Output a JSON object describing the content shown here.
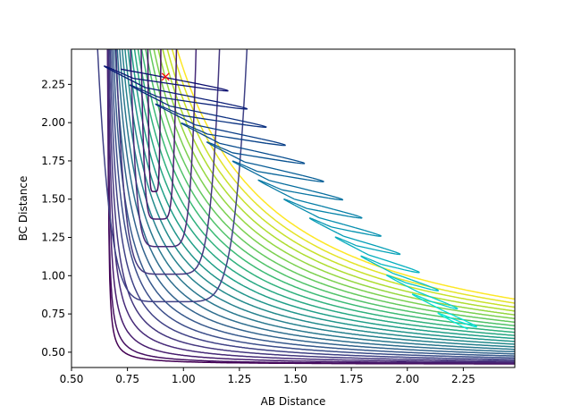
{
  "chart_data": {
    "type": "contour",
    "xlabel": "AB Distance",
    "ylabel": "BC Distance",
    "xlim": [
      0.5,
      2.48
    ],
    "ylim": [
      0.4,
      2.48
    ],
    "xticks": [
      "0.50",
      "0.75",
      "1.00",
      "1.25",
      "1.50",
      "1.75",
      "2.00",
      "2.25"
    ],
    "yticks": [
      "0.50",
      "0.75",
      "1.00",
      "1.25",
      "1.50",
      "1.75",
      "2.00",
      "2.25"
    ],
    "colormap": "viridis",
    "contour_levels": 26,
    "marker": {
      "x": 0.92,
      "y": 2.3,
      "symbol": "x",
      "color": "#ff0000"
    },
    "trajectory": {
      "color_start": "#0b0b6e",
      "color_end": "#00eedd",
      "start": [
        0.92,
        2.3
      ],
      "description": "oscillating trajectory from top-left toward bottom-right"
    },
    "grid": false
  }
}
